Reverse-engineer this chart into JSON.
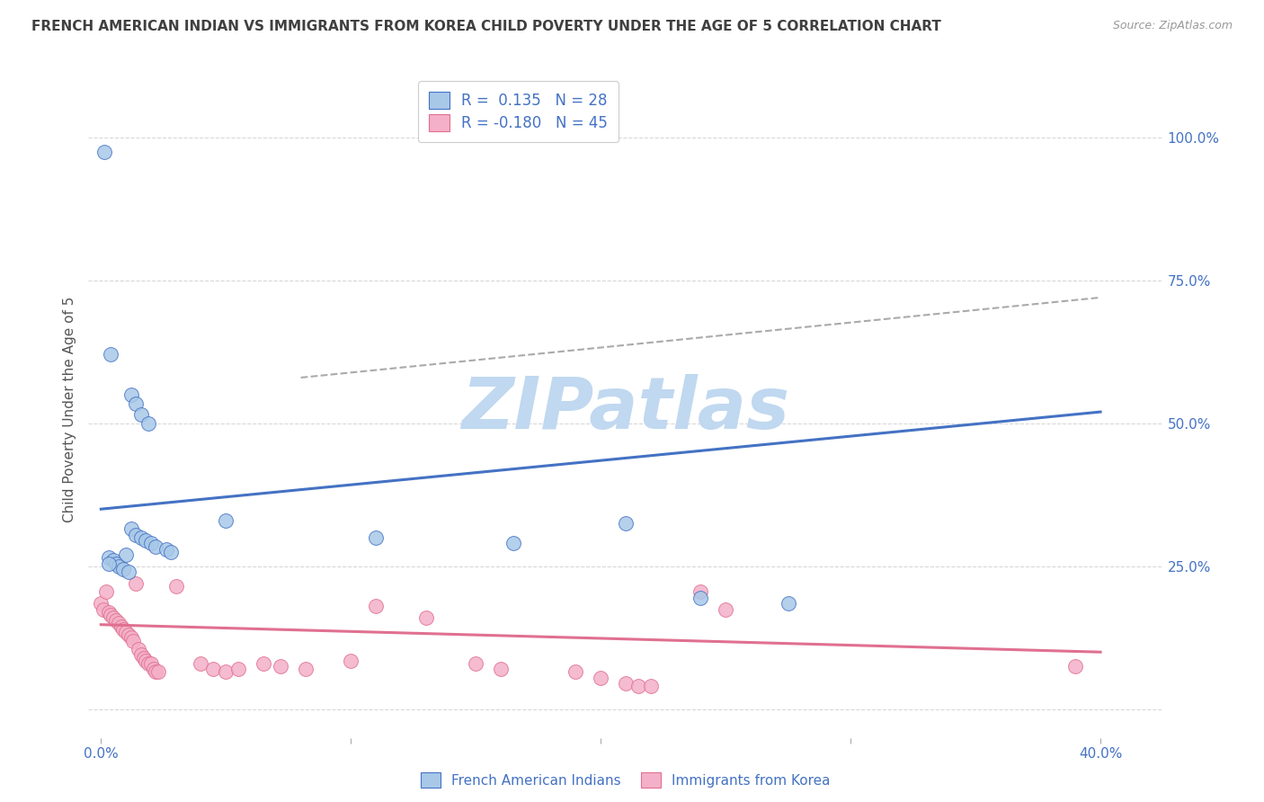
{
  "title": "FRENCH AMERICAN INDIAN VS IMMIGRANTS FROM KOREA CHILD POVERTY UNDER THE AGE OF 5 CORRELATION CHART",
  "source": "Source: ZipAtlas.com",
  "ylabel": "Child Poverty Under the Age of 5",
  "legend_label_blue": "French American Indians",
  "legend_label_pink": "Immigrants from Korea",
  "R_blue": 0.135,
  "N_blue": 28,
  "R_pink": -0.18,
  "N_pink": 45,
  "x_ticks": [
    0.0,
    0.1,
    0.2,
    0.3,
    0.4
  ],
  "x_tick_labels": [
    "0.0%",
    "",
    "",
    "",
    "40.0%"
  ],
  "y_ticks_right": [
    0.0,
    25.0,
    50.0,
    75.0,
    100.0
  ],
  "y_tick_labels_right": [
    "",
    "25.0%",
    "50.0%",
    "75.0%",
    "100.0%"
  ],
  "xlim": [
    -0.005,
    0.425
  ],
  "ylim": [
    -5,
    110
  ],
  "blue_scatter": [
    [
      0.0015,
      97.5
    ],
    [
      0.004,
      62.0
    ],
    [
      0.012,
      55.0
    ],
    [
      0.014,
      53.5
    ],
    [
      0.016,
      51.5
    ],
    [
      0.019,
      50.0
    ],
    [
      0.012,
      31.5
    ],
    [
      0.014,
      30.5
    ],
    [
      0.016,
      30.0
    ],
    [
      0.018,
      29.5
    ],
    [
      0.02,
      29.0
    ],
    [
      0.022,
      28.5
    ],
    [
      0.026,
      28.0
    ],
    [
      0.028,
      27.5
    ],
    [
      0.01,
      27.0
    ],
    [
      0.003,
      26.5
    ],
    [
      0.005,
      26.0
    ],
    [
      0.006,
      25.5
    ],
    [
      0.007,
      25.0
    ],
    [
      0.009,
      24.5
    ],
    [
      0.011,
      24.0
    ],
    [
      0.003,
      25.5
    ],
    [
      0.05,
      33.0
    ],
    [
      0.11,
      30.0
    ],
    [
      0.165,
      29.0
    ],
    [
      0.21,
      32.5
    ],
    [
      0.24,
      19.5
    ],
    [
      0.275,
      18.5
    ]
  ],
  "pink_scatter": [
    [
      0.0,
      18.5
    ],
    [
      0.001,
      17.5
    ],
    [
      0.002,
      20.5
    ],
    [
      0.003,
      17.0
    ],
    [
      0.004,
      16.5
    ],
    [
      0.005,
      16.0
    ],
    [
      0.006,
      15.5
    ],
    [
      0.007,
      15.0
    ],
    [
      0.008,
      14.5
    ],
    [
      0.009,
      14.0
    ],
    [
      0.01,
      13.5
    ],
    [
      0.011,
      13.0
    ],
    [
      0.012,
      12.5
    ],
    [
      0.013,
      12.0
    ],
    [
      0.014,
      22.0
    ],
    [
      0.015,
      10.5
    ],
    [
      0.016,
      9.5
    ],
    [
      0.017,
      9.0
    ],
    [
      0.018,
      8.5
    ],
    [
      0.019,
      8.0
    ],
    [
      0.02,
      8.0
    ],
    [
      0.021,
      7.0
    ],
    [
      0.022,
      6.5
    ],
    [
      0.023,
      6.5
    ],
    [
      0.04,
      8.0
    ],
    [
      0.045,
      7.0
    ],
    [
      0.05,
      6.5
    ],
    [
      0.055,
      7.0
    ],
    [
      0.065,
      8.0
    ],
    [
      0.072,
      7.5
    ],
    [
      0.082,
      7.0
    ],
    [
      0.1,
      8.5
    ],
    [
      0.11,
      18.0
    ],
    [
      0.13,
      16.0
    ],
    [
      0.15,
      8.0
    ],
    [
      0.16,
      7.0
    ],
    [
      0.19,
      6.5
    ],
    [
      0.2,
      5.5
    ],
    [
      0.21,
      4.5
    ],
    [
      0.215,
      4.0
    ],
    [
      0.22,
      4.0
    ],
    [
      0.24,
      20.5
    ],
    [
      0.25,
      17.5
    ],
    [
      0.39,
      7.5
    ],
    [
      0.03,
      21.5
    ]
  ],
  "blue_line_x": [
    0.0,
    0.4
  ],
  "blue_line_y": [
    35.0,
    52.0
  ],
  "pink_line_x": [
    0.0,
    0.4
  ],
  "pink_line_y": [
    14.8,
    10.0
  ],
  "gray_dashed_line_x": [
    0.08,
    0.4
  ],
  "gray_dashed_line_y": [
    58.0,
    72.0
  ],
  "background_color": "#ffffff",
  "blue_color": "#a8c8e8",
  "pink_color": "#f4b0c8",
  "blue_line_color": "#4472c4",
  "pink_line_color": "#e07090",
  "gray_dashed_color": "#aaaaaa",
  "title_color": "#404040",
  "axis_label_color": "#4472c4",
  "marker_size": 130,
  "grid_color": "#d8d8d8",
  "watermark_text": "ZIPatlas",
  "watermark_color": "#c0d8f0",
  "watermark_fontsize": 58
}
